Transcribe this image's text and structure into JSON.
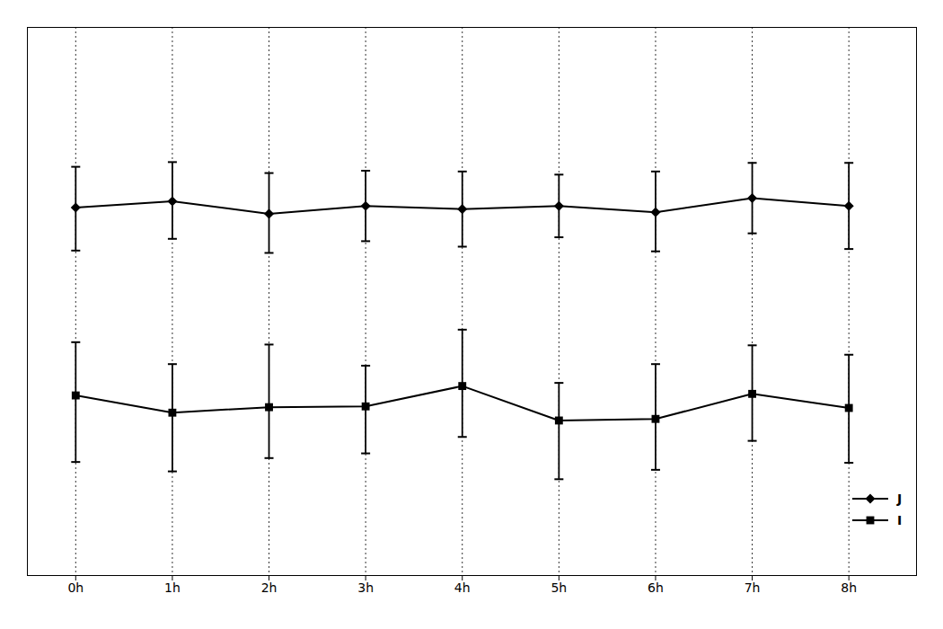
{
  "chart_data": {
    "type": "line",
    "x": [
      0,
      1,
      2,
      3,
      4,
      5,
      6,
      7,
      8
    ],
    "xlim": [
      -0.5,
      8.7
    ],
    "xticks": [
      {
        "value": 0,
        "label": "0h"
      },
      {
        "value": 1,
        "label": "1h"
      },
      {
        "value": 2,
        "label": "2h"
      },
      {
        "value": 3,
        "label": "3h"
      },
      {
        "value": 4,
        "label": "4h"
      },
      {
        "value": 5,
        "label": "5h"
      },
      {
        "value": 6,
        "label": "6h"
      },
      {
        "value": 7,
        "label": "7h"
      },
      {
        "value": 8,
        "label": "8h"
      }
    ],
    "ylim": [
      2.5,
      9.5
    ],
    "yticks": [],
    "tick_labels": "x",
    "grid": "x",
    "legend": "lower right",
    "series": [
      {
        "name": "J",
        "color": "#000000",
        "marker": "diamond",
        "values": [
          7.2,
          7.28,
          7.12,
          7.22,
          7.18,
          7.22,
          7.14,
          7.32,
          7.22
        ],
        "err_upper": [
          0.52,
          0.5,
          0.52,
          0.45,
          0.48,
          0.4,
          0.52,
          0.45,
          0.55
        ],
        "err_lower": [
          0.55,
          0.48,
          0.5,
          0.45,
          0.48,
          0.4,
          0.5,
          0.45,
          0.55
        ]
      },
      {
        "name": "I",
        "color": "#000000",
        "marker": "square",
        "values": [
          4.8,
          4.58,
          4.65,
          4.66,
          4.92,
          4.48,
          4.5,
          4.82,
          4.64
        ],
        "err_upper": [
          0.68,
          0.62,
          0.8,
          0.52,
          0.72,
          0.48,
          0.7,
          0.62,
          0.68
        ],
        "err_lower": [
          0.85,
          0.75,
          0.65,
          0.6,
          0.65,
          0.75,
          0.65,
          0.6,
          0.7
        ]
      }
    ]
  }
}
